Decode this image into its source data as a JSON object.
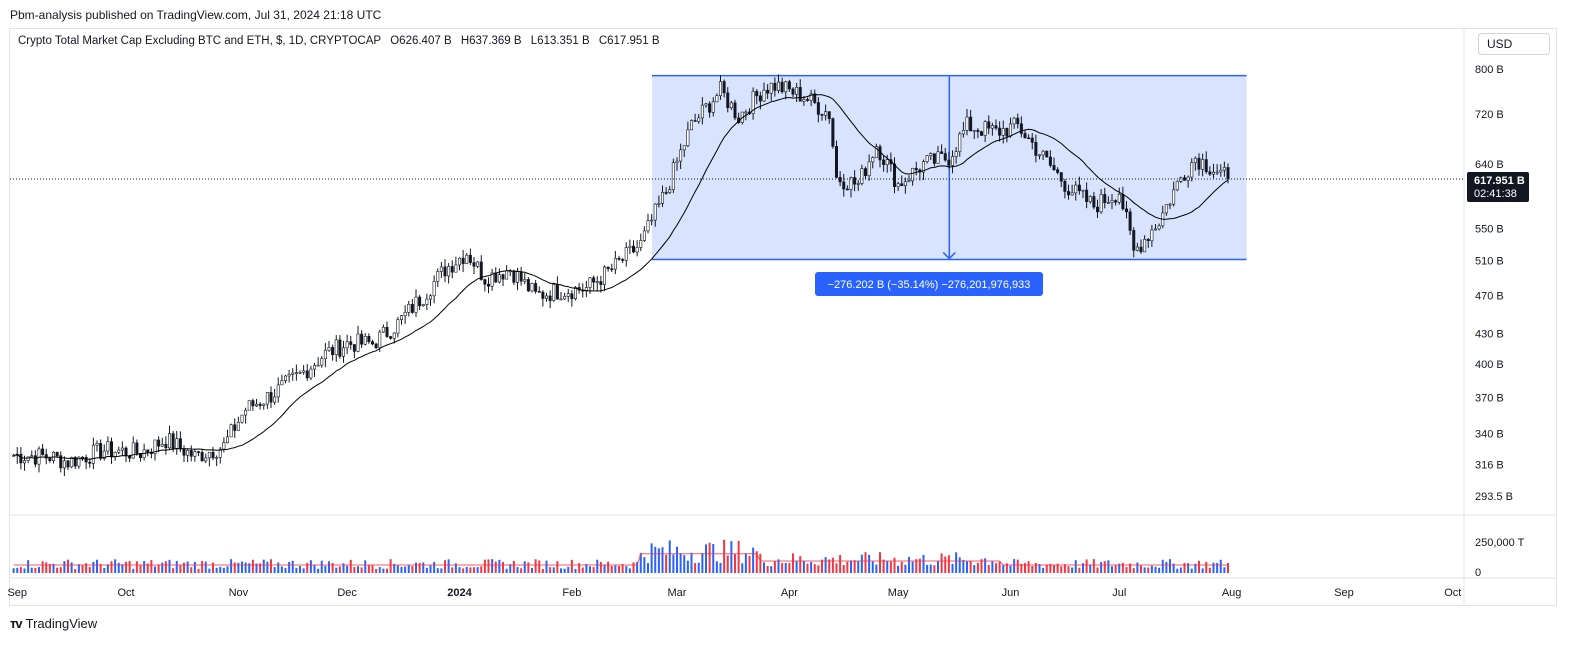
{
  "header": {
    "published": "Pbm-analysis published on TradingView.com, Jul 31, 2024 21:18 UTC"
  },
  "legend": {
    "title": "Crypto Total Market Cap Excluding BTC and ETH, $, 1D, CRYPTOCAP",
    "open": "O626.407 B",
    "high": "H637.369 B",
    "low": "L613.351 B",
    "close": "C617.951 B"
  },
  "toolbar": {
    "currency": "USD"
  },
  "price_tag": {
    "value": "617.951 B",
    "countdown": "02:41:38"
  },
  "measure": {
    "label": "−276.202 B (−35.14%) −276,201,976,933"
  },
  "footer": {
    "brand": "TradingView"
  },
  "colors": {
    "up": "#2962ff",
    "down": "#f23645",
    "candle": "#131722",
    "ma": "#000000",
    "range_fill": "#d6e2fe",
    "range_line": "#2962ff",
    "volume_ma": "#f23645"
  },
  "chart_data": {
    "type": "candlestick",
    "scale": "log",
    "symbol": "CRYPTOCAP",
    "interval": "1D",
    "y_ticks": [
      "800 B",
      "720 B",
      "640 B",
      "550 B",
      "510 B",
      "470 B",
      "430 B",
      "400 B",
      "370 B",
      "340 B",
      "316 B",
      "293.5 B"
    ],
    "y_tick_values": [
      800,
      720,
      640,
      550,
      510,
      470,
      430,
      400,
      370,
      340,
      316,
      293.5
    ],
    "x_ticks": [
      "Sep",
      "Oct",
      "Nov",
      "Dec",
      "2024",
      "Feb",
      "Mar",
      "Apr",
      "May",
      "Jun",
      "Jul",
      "Aug",
      "Sep",
      "Oct"
    ],
    "volume_ticks": [
      "250,000 T",
      "0"
    ],
    "series_points": [
      [
        "2023-08-31",
        323
      ],
      [
        "2023-09-10",
        322
      ],
      [
        "2023-09-15",
        318
      ],
      [
        "2023-09-25",
        327
      ],
      [
        "2023-10-05",
        325
      ],
      [
        "2023-10-12",
        335
      ],
      [
        "2023-10-20",
        322
      ],
      [
        "2023-10-28",
        330
      ],
      [
        "2023-11-03",
        360
      ],
      [
        "2023-11-10",
        372
      ],
      [
        "2023-11-18",
        390
      ],
      [
        "2023-11-25",
        410
      ],
      [
        "2023-12-01",
        420
      ],
      [
        "2023-12-08",
        420
      ],
      [
        "2023-12-15",
        440
      ],
      [
        "2023-12-22",
        470
      ],
      [
        "2023-12-28",
        500
      ],
      [
        "2024-01-03",
        520
      ],
      [
        "2024-01-08",
        490
      ],
      [
        "2024-01-15",
        500
      ],
      [
        "2024-01-22",
        470
      ],
      [
        "2024-01-28",
        475
      ],
      [
        "2024-02-05",
        478
      ],
      [
        "2024-02-12",
        500
      ],
      [
        "2024-02-20",
        530
      ],
      [
        "2024-02-27",
        600
      ],
      [
        "2024-03-05",
        700
      ],
      [
        "2024-03-13",
        760
      ],
      [
        "2024-03-18",
        715
      ],
      [
        "2024-03-25",
        765
      ],
      [
        "2024-03-28",
        770
      ],
      [
        "2024-04-05",
        750
      ],
      [
        "2024-04-12",
        720
      ],
      [
        "2024-04-14",
        620
      ],
      [
        "2024-04-20",
        610
      ],
      [
        "2024-04-25",
        670
      ],
      [
        "2024-05-01",
        610
      ],
      [
        "2024-05-08",
        640
      ],
      [
        "2024-05-15",
        650
      ],
      [
        "2024-05-20",
        700
      ],
      [
        "2024-05-28",
        690
      ],
      [
        "2024-06-03",
        700
      ],
      [
        "2024-06-10",
        650
      ],
      [
        "2024-06-17",
        605
      ],
      [
        "2024-06-24",
        580
      ],
      [
        "2024-07-01",
        600
      ],
      [
        "2024-07-05",
        520
      ],
      [
        "2024-07-12",
        560
      ],
      [
        "2024-07-18",
        620
      ],
      [
        "2024-07-22",
        650
      ],
      [
        "2024-07-28",
        630
      ],
      [
        "2024-07-31",
        618
      ]
    ],
    "measure_range": {
      "from_date": "2024-02-22",
      "to_date": "2024-08-01",
      "top": 787.6,
      "bottom": 511.4,
      "change": "−276.202 B",
      "change_pct": "−35.14%"
    },
    "last_close": 617.951
  }
}
